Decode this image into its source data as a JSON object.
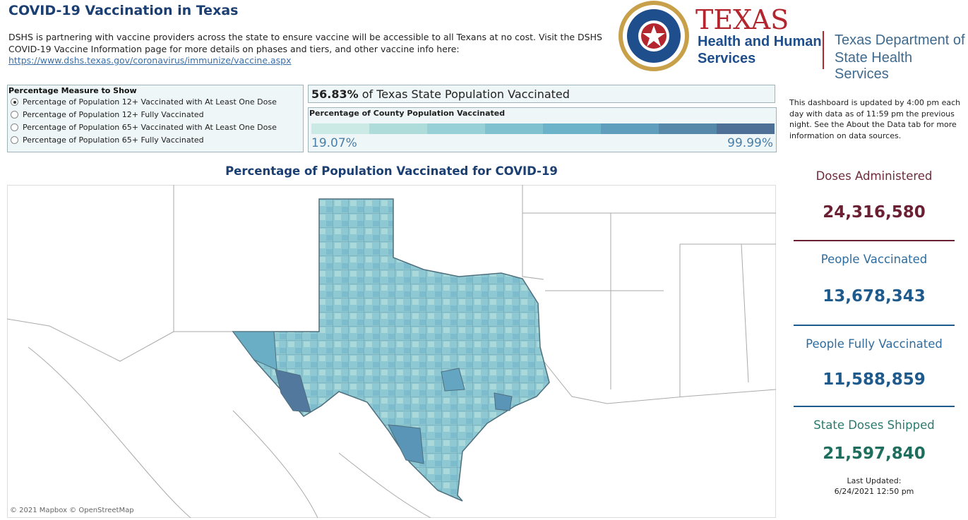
{
  "header": {
    "title": "COVID-19 Vaccination in Texas",
    "description": "DSHS is partnering with vaccine providers across the state to ensure vaccine will be accessible to all Texans at no cost. Visit the DSHS COVID-19 Vaccine Information page for more details on phases and tiers, and other vaccine info here:",
    "link": "https://www.dshs.texas.gov/coronavirus/immunize/vaccine.aspx"
  },
  "logo": {
    "texas": "TEXAS",
    "hhs": [
      "Health and Human",
      "Services"
    ],
    "dshs": [
      "Texas Department of",
      "State Health Services"
    ]
  },
  "measure": {
    "title": "Percentage Measure to Show",
    "selected": 0,
    "options": [
      "Percentage of Population 12+ Vaccinated with At Least One Dose",
      "Percentage of Population 12+ Fully Vaccinated",
      "Percentage of Population 65+ Vaccinated with At Least One Dose",
      "Percentage of Population 65+ Fully Vaccinated"
    ]
  },
  "headline": {
    "value": "56.83%",
    "text": "of Texas State Population Vaccinated"
  },
  "legend": {
    "title": "Percentage of County Population Vaccinated",
    "min": "19.07%",
    "max": "99.99%",
    "colors": [
      "#cbe9e5",
      "#aedcda",
      "#97d0d6",
      "#80c1d0",
      "#6cb2c8",
      "#5f9fbd",
      "#5688a9",
      "#4e6f96"
    ]
  },
  "note": "This dashboard is updated by 4:00 pm each day with data as of 11:59 pm the previous night. See the About the Data tab for more information on data sources.",
  "map": {
    "title": "Percentage of Population Vaccinated for COVID-19",
    "attribution": "© 2021 Mapbox © OpenStreetMap"
  },
  "stats": [
    {
      "label": "Doses Administered",
      "value": "24,316,580",
      "label_color": "#6e2b3b",
      "value_color": "#6b1f33"
    },
    {
      "label": "People Vaccinated",
      "value": "13,678,343",
      "label_color": "#2f6c9d",
      "value_color": "#1e5a8c"
    },
    {
      "label": "People Fully Vaccinated",
      "value": "11,588,859",
      "label_color": "#2f6c9d",
      "value_color": "#1e5a8c"
    },
    {
      "label": "State Doses Shipped",
      "value": "21,597,840",
      "label_color": "#2b7a6d",
      "value_color": "#1e6e5e"
    }
  ],
  "last_updated": {
    "label": "Last Updated:",
    "value": "6/24/2021 12:50 pm"
  }
}
